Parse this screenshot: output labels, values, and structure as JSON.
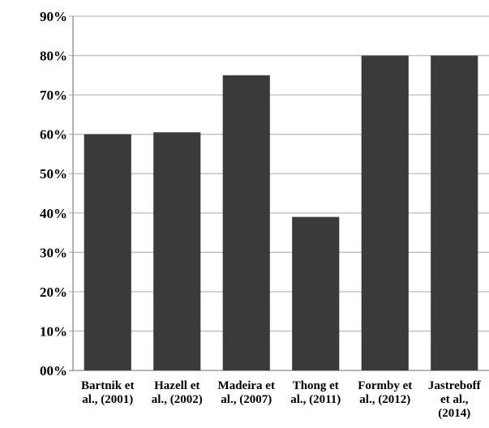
{
  "chart_data": {
    "type": "bar",
    "categories": [
      [
        "Bartnik et",
        "al., (2001)"
      ],
      [
        "Hazell et",
        "al., (2002)"
      ],
      [
        "Madeira et",
        "al., (2007)"
      ],
      [
        "Thong et",
        "al., (2011)"
      ],
      [
        "Formby et",
        "al., (2012)"
      ],
      [
        "Jastreboff",
        "et al.,",
        "(2014)"
      ]
    ],
    "values": [
      60,
      60.5,
      75,
      39,
      80,
      80
    ],
    "ylim": [
      0,
      90
    ],
    "yticks": [
      0,
      10,
      20,
      30,
      40,
      50,
      60,
      70,
      80,
      90
    ],
    "ytick_labels": [
      "00%",
      "10%",
      "20%",
      "30%",
      "40%",
      "50%",
      "60%",
      "70%",
      "80%",
      "90%"
    ],
    "grid": true,
    "title": "",
    "xlabel": "",
    "ylabel": "",
    "colors": {
      "bar": "#3a3a3a",
      "grid": "#bdbdbd",
      "axis": "#8c8c8c"
    }
  }
}
